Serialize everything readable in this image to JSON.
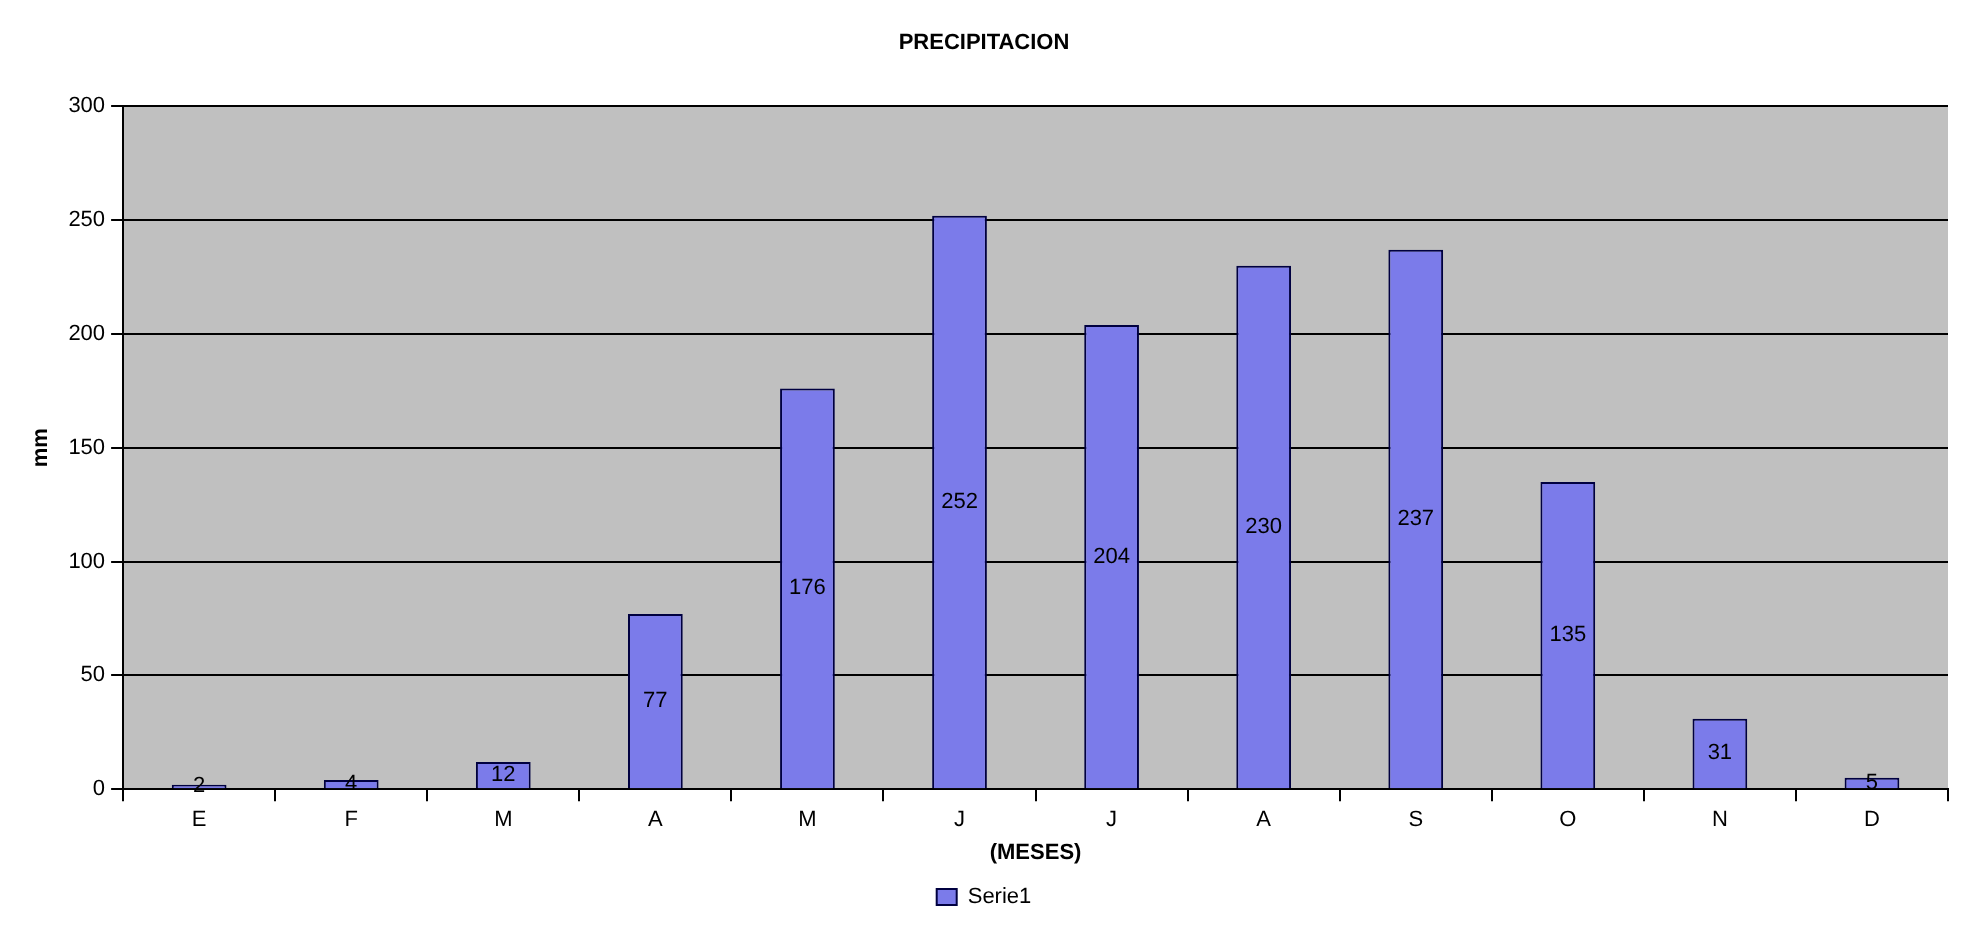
{
  "chart_data": {
    "type": "bar",
    "title": "PRECIPITACION",
    "xlabel": "(MESES)",
    "ylabel": "mm",
    "categories": [
      "E",
      "F",
      "M",
      "A",
      "M",
      "J",
      "J",
      "A",
      "S",
      "O",
      "N",
      "D"
    ],
    "series": [
      {
        "name": "Serie1",
        "color": "#7b7bea",
        "values": [
          2,
          4,
          12,
          77,
          176,
          252,
          204,
          230,
          237,
          135,
          31,
          5
        ]
      }
    ],
    "ylim": [
      0,
      300
    ],
    "yticks": [
      0,
      50,
      100,
      150,
      200,
      250,
      300
    ],
    "grid": "y",
    "legend": "bottom",
    "data_labels": true
  }
}
